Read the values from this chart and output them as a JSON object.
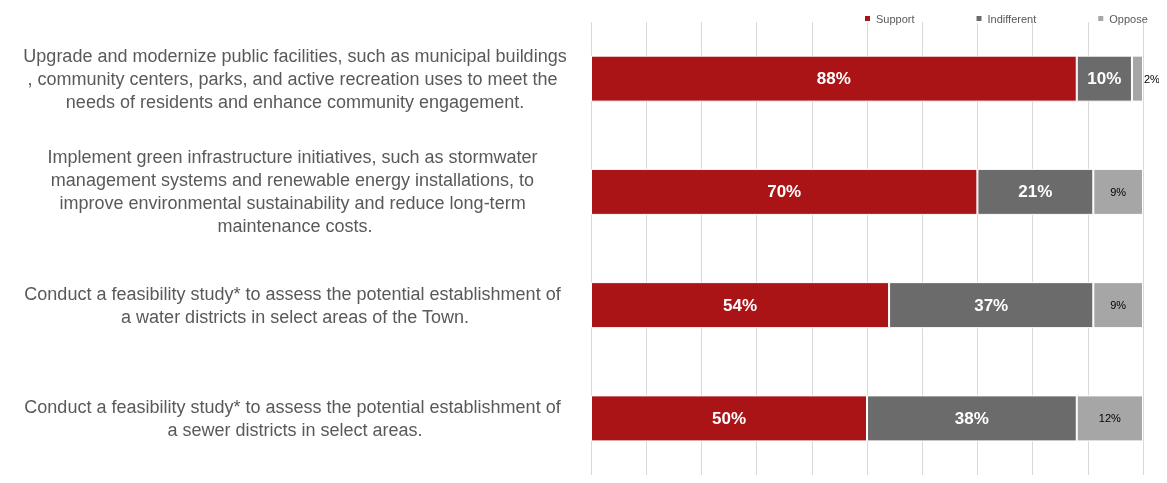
{
  "chart_data": {
    "type": "bar",
    "orientation": "horizontal",
    "stacked": true,
    "categories": [
      "Upgrade and modernize public facilities, such as municipal buildings, community centers, parks, and active recreation uses to meet the needs of residents and enhance community engagement.",
      "Implement green infrastructure initiatives, such as stormwater management systems and renewable energy installations, to improve environmental sustainability and reduce long-term maintenance costs.",
      "Conduct a feasibility study* to assess the potential establishment of a water districts in select areas of the Town.",
      "Conduct a feasibility study* to assess the potential establishment of a sewer districts in select areas."
    ],
    "series": [
      {
        "name": "Support",
        "color": "#ab1416",
        "values": [
          88,
          70,
          54,
          50
        ],
        "value_labels": [
          "88%",
          "70%",
          "54%",
          "50%"
        ]
      },
      {
        "name": "Indifferent",
        "color": "#6b6b6b",
        "values": [
          10,
          21,
          37,
          38
        ],
        "value_labels": [
          "10%",
          "21%",
          "37%",
          "38%"
        ]
      },
      {
        "name": "Oppose",
        "color": "#a6a6a6",
        "values": [
          2,
          9,
          9,
          12
        ],
        "value_labels": [
          "2%",
          "9%",
          "9%",
          "12%"
        ]
      }
    ],
    "xlim": [
      0,
      100
    ],
    "tick_labels": "y",
    "grid": "x",
    "legend": "top"
  }
}
